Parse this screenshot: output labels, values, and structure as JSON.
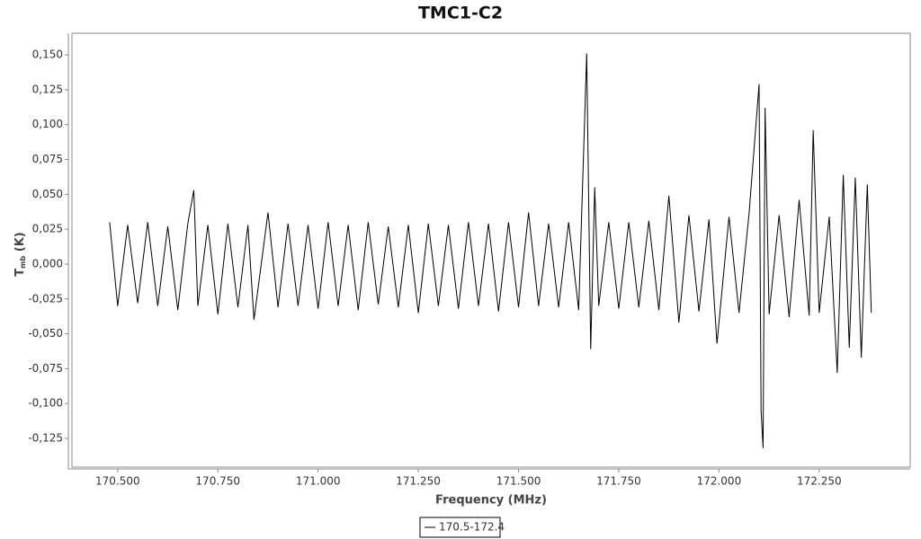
{
  "chart_data": {
    "type": "line",
    "title": "TMC1-C2",
    "x_label": "Frequency (MHz)",
    "y_label": {
      "main": "T",
      "sub": "mb",
      "unit": "(K)"
    },
    "xlim": [
      170.386,
      172.477
    ],
    "ylim": [
      -0.1456,
      0.1655
    ],
    "xticks": [
      {
        "value": 170.5,
        "label": "170.500"
      },
      {
        "value": 170.75,
        "label": "170.750"
      },
      {
        "value": 171,
        "label": "171.000"
      },
      {
        "value": 171.25,
        "label": "171.250"
      },
      {
        "value": 171.5,
        "label": "171.500"
      },
      {
        "value": 171.75,
        "label": "171.750"
      },
      {
        "value": 172,
        "label": "172.000"
      },
      {
        "value": 172.25,
        "label": "172.250"
      }
    ],
    "yticks": [
      {
        "value": 0.15,
        "label": "0,150"
      },
      {
        "value": 0.125,
        "label": "0,125"
      },
      {
        "value": 0.1,
        "label": "0,100"
      },
      {
        "value": 0.075,
        "label": "0,075"
      },
      {
        "value": 0.05,
        "label": "0,050"
      },
      {
        "value": 0.025,
        "label": "0,025"
      },
      {
        "value": 0,
        "label": "0,000"
      },
      {
        "value": -0.025,
        "label": "-0,025"
      },
      {
        "value": -0.05,
        "label": "-0,050"
      },
      {
        "value": -0.075,
        "label": "-0,075"
      },
      {
        "value": -0.1,
        "label": "-0,100"
      },
      {
        "value": -0.125,
        "label": "-0,125"
      }
    ],
    "x": [
      170.48,
      170.5,
      170.525,
      170.55,
      170.575,
      170.6,
      170.625,
      170.65,
      170.675,
      170.69,
      170.7,
      170.725,
      170.75,
      170.775,
      170.8,
      170.825,
      170.84,
      170.875,
      170.9,
      170.925,
      170.95,
      170.975,
      171,
      171.025,
      171.05,
      171.075,
      171.1,
      171.125,
      171.15,
      171.175,
      171.2,
      171.225,
      171.25,
      171.275,
      171.3,
      171.325,
      171.35,
      171.375,
      171.4,
      171.425,
      171.45,
      171.475,
      171.5,
      171.525,
      171.55,
      171.575,
      171.6,
      171.625,
      171.65,
      171.67,
      171.68,
      171.69,
      171.7,
      171.725,
      171.75,
      171.775,
      171.8,
      171.825,
      171.85,
      171.875,
      171.9,
      171.925,
      171.95,
      171.975,
      171.995,
      172.025,
      172.05,
      172.075,
      172.1,
      172.105,
      172.11,
      172.115,
      172.125,
      172.15,
      172.175,
      172.2,
      172.225,
      172.235,
      172.25,
      172.275,
      172.295,
      172.31,
      172.325,
      172.34,
      172.355,
      172.37,
      172.38
    ],
    "series": [
      {
        "name": "170.5-172.4",
        "color": "#000000",
        "values": [
          0.03,
          -0.03,
          0.028,
          -0.028,
          0.03,
          -0.03,
          0.027,
          -0.033,
          0.029,
          0.053,
          -0.03,
          0.028,
          -0.036,
          0.029,
          -0.031,
          0.028,
          -0.04,
          0.037,
          -0.031,
          0.029,
          -0.03,
          0.028,
          -0.032,
          0.03,
          -0.03,
          0.028,
          -0.033,
          0.03,
          -0.029,
          0.027,
          -0.031,
          0.028,
          -0.035,
          0.029,
          -0.03,
          0.028,
          -0.032,
          0.03,
          -0.03,
          0.029,
          -0.034,
          0.03,
          -0.031,
          0.037,
          -0.03,
          0.029,
          -0.031,
          0.03,
          -0.033,
          0.151,
          -0.061,
          0.055,
          -0.03,
          0.03,
          -0.032,
          0.03,
          -0.031,
          0.031,
          -0.033,
          0.049,
          -0.042,
          0.035,
          -0.034,
          0.032,
          -0.057,
          0.034,
          -0.035,
          0.036,
          0.129,
          -0.105,
          -0.132,
          0.112,
          -0.036,
          0.035,
          -0.038,
          0.046,
          -0.037,
          0.096,
          -0.035,
          0.034,
          -0.078,
          0.064,
          -0.06,
          0.062,
          -0.067,
          0.057,
          -0.035
        ]
      }
    ]
  }
}
